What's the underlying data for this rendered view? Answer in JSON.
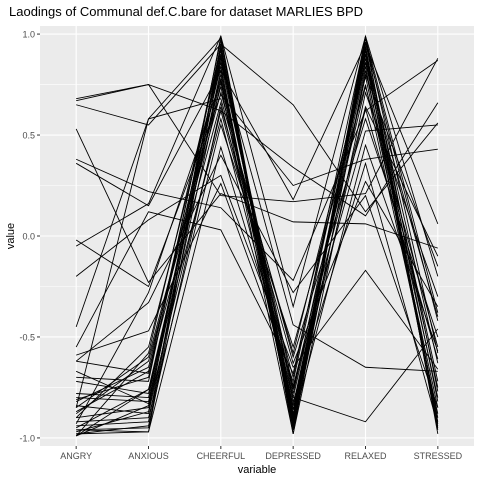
{
  "chart_data": {
    "type": "line",
    "title": "Laodings of Communal def.C.bare for dataset MARLIES BPD",
    "xlabel": "variable",
    "ylabel": "value",
    "categories": [
      "ANGRY",
      "ANXIOUS",
      "CHEERFUL",
      "DEPRESSED",
      "RELAXED",
      "STRESSED"
    ],
    "ylim": [
      -1.04,
      1.04
    ],
    "yticks": [
      1.0,
      0.5,
      0.0,
      -0.5,
      -1.0
    ],
    "ytick_labels": [
      "1.0",
      "0.5",
      "0.0",
      "-0.5",
      "-1.0"
    ],
    "grid": true,
    "legend": "none",
    "colors": {
      "panel": "#ebebeb",
      "grid": "#ffffff",
      "line": "#000000",
      "text": "#4d4d4d"
    },
    "series": [
      {
        "values": [
          0.68,
          0.75,
          0.2,
          0.17,
          0.21,
          0.88
        ]
      },
      {
        "values": [
          0.67,
          0.75,
          0.62,
          0.34,
          0.1,
          0.66
        ]
      },
      {
        "values": [
          0.65,
          0.55,
          0.95,
          0.65,
          0.12,
          0.56
        ]
      },
      {
        "values": [
          0.53,
          -0.23,
          0.21,
          0.07,
          0.06,
          -0.06
        ]
      },
      {
        "values": [
          0.38,
          0.22,
          0.14,
          -0.22,
          0.62,
          0.87
        ]
      },
      {
        "values": [
          0.36,
          0.15,
          0.82,
          0.18,
          0.95,
          0.06
        ]
      },
      {
        "values": [
          -0.02,
          -0.25,
          0.7,
          0.25,
          0.38,
          0.43
        ]
      },
      {
        "values": [
          -0.05,
          0.16,
          0.99,
          -0.35,
          0.99,
          -0.2
        ]
      },
      {
        "values": [
          -0.2,
          0.08,
          0.3,
          -0.65,
          -0.17,
          -0.66
        ]
      },
      {
        "values": [
          -0.45,
          0.58,
          0.98,
          -0.98,
          0.98,
          -0.38
        ]
      },
      {
        "values": [
          -0.55,
          0.12,
          0.03,
          -0.68,
          0.9,
          -0.72
        ]
      },
      {
        "values": [
          -0.59,
          -0.47,
          0.26,
          -0.72,
          0.92,
          -0.82
        ]
      },
      {
        "values": [
          -0.62,
          -0.68,
          0.94,
          -0.94,
          0.96,
          -0.42
        ]
      },
      {
        "values": [
          -0.67,
          -0.83,
          0.92,
          -0.92,
          0.93,
          -0.92
        ]
      },
      {
        "values": [
          -0.7,
          -0.72,
          0.97,
          -0.9,
          0.92,
          -0.63
        ]
      },
      {
        "values": [
          -0.72,
          -0.78,
          0.8,
          -0.86,
          0.88,
          -0.9
        ]
      },
      {
        "values": [
          -0.78,
          -0.8,
          0.9,
          -0.89,
          0.94,
          -0.96
        ]
      },
      {
        "values": [
          -0.8,
          -0.82,
          0.86,
          -0.8,
          0.79,
          -0.85
        ]
      },
      {
        "values": [
          -0.81,
          -0.7,
          0.88,
          -0.78,
          0.86,
          -0.4
        ]
      },
      {
        "values": [
          -0.82,
          -0.65,
          0.84,
          -0.95,
          0.96,
          -0.77
        ]
      },
      {
        "values": [
          -0.84,
          -0.88,
          0.76,
          -0.84,
          0.84,
          -0.93
        ]
      },
      {
        "values": [
          -0.85,
          -0.6,
          0.74,
          -0.98,
          0.71,
          -0.3
        ]
      },
      {
        "values": [
          -0.87,
          -0.67,
          0.66,
          -0.76,
          0.64,
          -0.1
        ]
      },
      {
        "values": [
          -0.88,
          -0.62,
          0.71,
          -0.6,
          0.58,
          -0.5
        ]
      },
      {
        "values": [
          -0.9,
          -0.85,
          0.62,
          -0.7,
          0.98,
          -0.58
        ]
      },
      {
        "values": [
          -0.92,
          -0.9,
          0.55,
          -0.55,
          0.75,
          -0.88
        ]
      },
      {
        "values": [
          -0.94,
          -0.92,
          0.93,
          -0.88,
          0.9,
          -0.95
        ]
      },
      {
        "values": [
          -0.95,
          -0.76,
          0.78,
          -0.82,
          0.36,
          -0.94
        ]
      },
      {
        "values": [
          -0.96,
          -0.95,
          0.95,
          -0.96,
          0.82,
          -0.8
        ]
      },
      {
        "values": [
          -0.97,
          -0.87,
          0.99,
          -0.91,
          0.99,
          -0.98
        ]
      },
      {
        "values": [
          -0.98,
          -0.97,
          0.89,
          -0.75,
          0.74,
          -0.55
        ]
      },
      {
        "values": [
          -0.98,
          -0.94,
          0.64,
          -0.63,
          0.27,
          -0.35
        ]
      },
      {
        "values": [
          -0.99,
          -0.84,
          0.82,
          -0.92,
          0.45,
          -0.57
        ]
      },
      {
        "values": [
          -0.99,
          -0.58,
          0.92,
          -0.86,
          0.63,
          -0.61
        ]
      },
      {
        "values": [
          -0.99,
          -0.76,
          0.58,
          -0.8,
          -0.92,
          -0.46
        ]
      },
      {
        "values": [
          -0.96,
          -0.97,
          0.44,
          -0.74,
          0.52,
          0.55
        ]
      },
      {
        "values": [
          -0.9,
          -0.55,
          0.86,
          -0.44,
          -0.65,
          -0.67
        ]
      },
      {
        "values": [
          -0.62,
          -0.33,
          0.4,
          -0.28,
          0.2,
          -0.85
        ]
      },
      {
        "values": [
          -0.85,
          0.58,
          0.68,
          -0.58,
          0.86,
          -0.75
        ]
      },
      {
        "values": [
          -0.93,
          -0.28,
          0.77,
          -0.93,
          0.8,
          -0.15
        ]
      }
    ]
  }
}
